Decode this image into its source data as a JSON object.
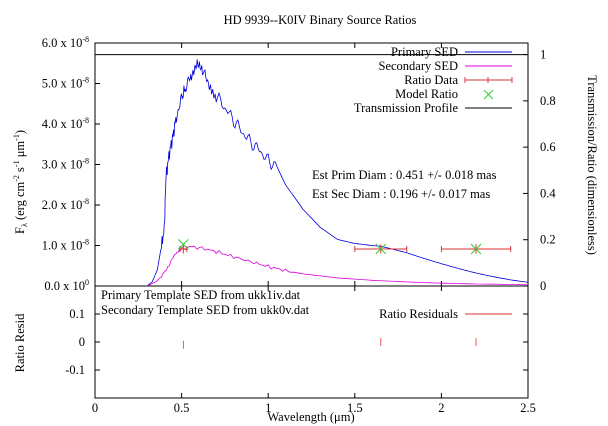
{
  "chart_data": [
    {
      "type": "line",
      "title": "HD 9939--K0IV Binary Source Ratios",
      "ylabel_parts": {
        "F": "F",
        "sub": "λ",
        "rest": " (erg cm",
        "exp1": "-2",
        "s": " s",
        "exp2": "-1",
        "um": " μm",
        "exp3": "-1",
        "close": ")"
      },
      "y2label": "Transmission/Ratio (dimensionless)",
      "xlim": [
        0,
        2.5
      ],
      "ylim": [
        0,
        6e-08
      ],
      "y2lim": [
        0,
        1.05
      ],
      "x_ticks": [
        0,
        0.5,
        1,
        1.5,
        2,
        2.5
      ],
      "y_tick_labels": [
        {
          "value": 0,
          "base": "0.0 x 10",
          "exp": "0"
        },
        {
          "value": 1e-08,
          "base": "1.0 x 10",
          "exp": "-8"
        },
        {
          "value": 2e-08,
          "base": "2.0 x 10",
          "exp": "-8"
        },
        {
          "value": 3e-08,
          "base": "3.0 x 10",
          "exp": "-8"
        },
        {
          "value": 4e-08,
          "base": "4.0 x 10",
          "exp": "-8"
        },
        {
          "value": 5e-08,
          "base": "5.0 x 10",
          "exp": "-8"
        },
        {
          "value": 6e-08,
          "base": "6.0 x 10",
          "exp": "-8"
        }
      ],
      "y2_ticks": [
        "0",
        "0.2",
        "0.4",
        "0.6",
        "0.8",
        "1"
      ],
      "y2_tick_values": [
        0,
        0.2,
        0.4,
        0.6,
        0.8,
        1.0
      ],
      "legend": [
        "Primary SED",
        "Secondary SED",
        "Ratio Data",
        "Model Ratio",
        "Transmission Profile"
      ],
      "legend_placement": "top-right",
      "annotations": [
        "Est Prim Diam : 0.451 +/- 0.018 mas",
        "Est Sec Diam : 0.196 +/- 0.017 mas"
      ],
      "colors": {
        "primary": "#0000dd",
        "secondary": "#dd00dd",
        "ratio_data": "#dd3333",
        "model_ratio": "#33cc33",
        "transmission": "#000000"
      },
      "series": [
        {
          "name": "Primary SED",
          "x": [
            0.3,
            0.33,
            0.36,
            0.38,
            0.4,
            0.41,
            0.43,
            0.45,
            0.47,
            0.5,
            0.52,
            0.55,
            0.57,
            0.59,
            0.61,
            0.63,
            0.66,
            0.7,
            0.75,
            0.8,
            0.85,
            0.9,
            0.95,
            1.0,
            1.05,
            1.1,
            1.2,
            1.3,
            1.4,
            1.5,
            1.6,
            1.65,
            1.7,
            1.8,
            1.9,
            2.0,
            2.1,
            2.2,
            2.3,
            2.4,
            2.5
          ],
          "y": [
            0.0,
            1e-09,
            4e-09,
            9e-09,
            1.4e-08,
            2.7e-08,
            3.3e-08,
            3.7e-08,
            4.2e-08,
            4.6e-08,
            4.9e-08,
            5.1e-08,
            5.3e-08,
            5.5e-08,
            5.4e-08,
            5.2e-08,
            5e-08,
            4.7e-08,
            4.4e-08,
            4.1e-08,
            3.8e-08,
            3.55e-08,
            3.35e-08,
            3.1e-08,
            2.95e-08,
            2.5e-08,
            1.9e-08,
            1.45e-08,
            1.15e-08,
            1.05e-08,
            1e-08,
            9.8e-09,
            9.3e-09,
            8.2e-09,
            6.8e-09,
            5.5e-09,
            4.3e-09,
            3.2e-09,
            2.3e-09,
            1.5e-09,
            9e-10
          ]
        },
        {
          "name": "Secondary SED",
          "x": [
            0.3,
            0.35,
            0.4,
            0.43,
            0.46,
            0.5,
            0.55,
            0.6,
            0.7,
            0.8,
            0.9,
            1.0,
            1.1,
            1.2,
            1.4,
            1.6,
            1.8,
            2.0,
            2.2,
            2.5
          ],
          "y": [
            0.0,
            1e-09,
            3e-09,
            5.5e-09,
            7.5e-09,
            9e-09,
            9.7e-09,
            9.5e-09,
            8.5e-09,
            7.2e-09,
            6e-09,
            4.8e-09,
            3.8e-09,
            3e-09,
            2e-09,
            1.4e-09,
            1e-09,
            7e-10,
            5e-10,
            3e-10
          ]
        },
        {
          "name": "Ratio Data",
          "x": [
            0.51,
            1.65,
            2.2
          ],
          "y": [
            0.16,
            0.16,
            0.16
          ],
          "xerr": [
            0.02,
            0.15,
            0.2
          ],
          "yerr": [
            0.02,
            0.02,
            0.02
          ]
        },
        {
          "name": "Model Ratio",
          "x": [
            0.51,
            1.65,
            2.2
          ],
          "y": [
            0.18,
            0.16,
            0.16
          ]
        },
        {
          "name": "Transmission Profile",
          "x": [
            0.0,
            2.5
          ],
          "y": [
            1.0,
            1.0
          ]
        }
      ]
    },
    {
      "type": "scatter",
      "ylabel": "Ratio Resid",
      "xlabel_parts": {
        "pre": "Wavelength (",
        "unit": "μm",
        "post": ")"
      },
      "xlim": [
        0,
        2.5
      ],
      "ylim": [
        -0.2,
        0.2
      ],
      "x_ticks": [
        0,
        0.5,
        1,
        1.5,
        2,
        2.5
      ],
      "x_tick_labels": [
        "0",
        "0.5",
        "1",
        "1.5",
        "2",
        "2.5"
      ],
      "y_ticks": [
        0.1,
        0,
        -0.1
      ],
      "y_tick_labels": [
        "0.1",
        "0",
        "-0.1"
      ],
      "legend": [
        "Ratio Residuals"
      ],
      "annotations": [
        "Primary Template SED from ukk1iv.dat",
        "Secondary Template SED from ukk0v.dat"
      ],
      "series": [
        {
          "name": "Ratio Residuals",
          "x": [
            0.51,
            1.65,
            2.2
          ],
          "y": [
            -0.01,
            0.0,
            0.0
          ]
        }
      ]
    }
  ]
}
